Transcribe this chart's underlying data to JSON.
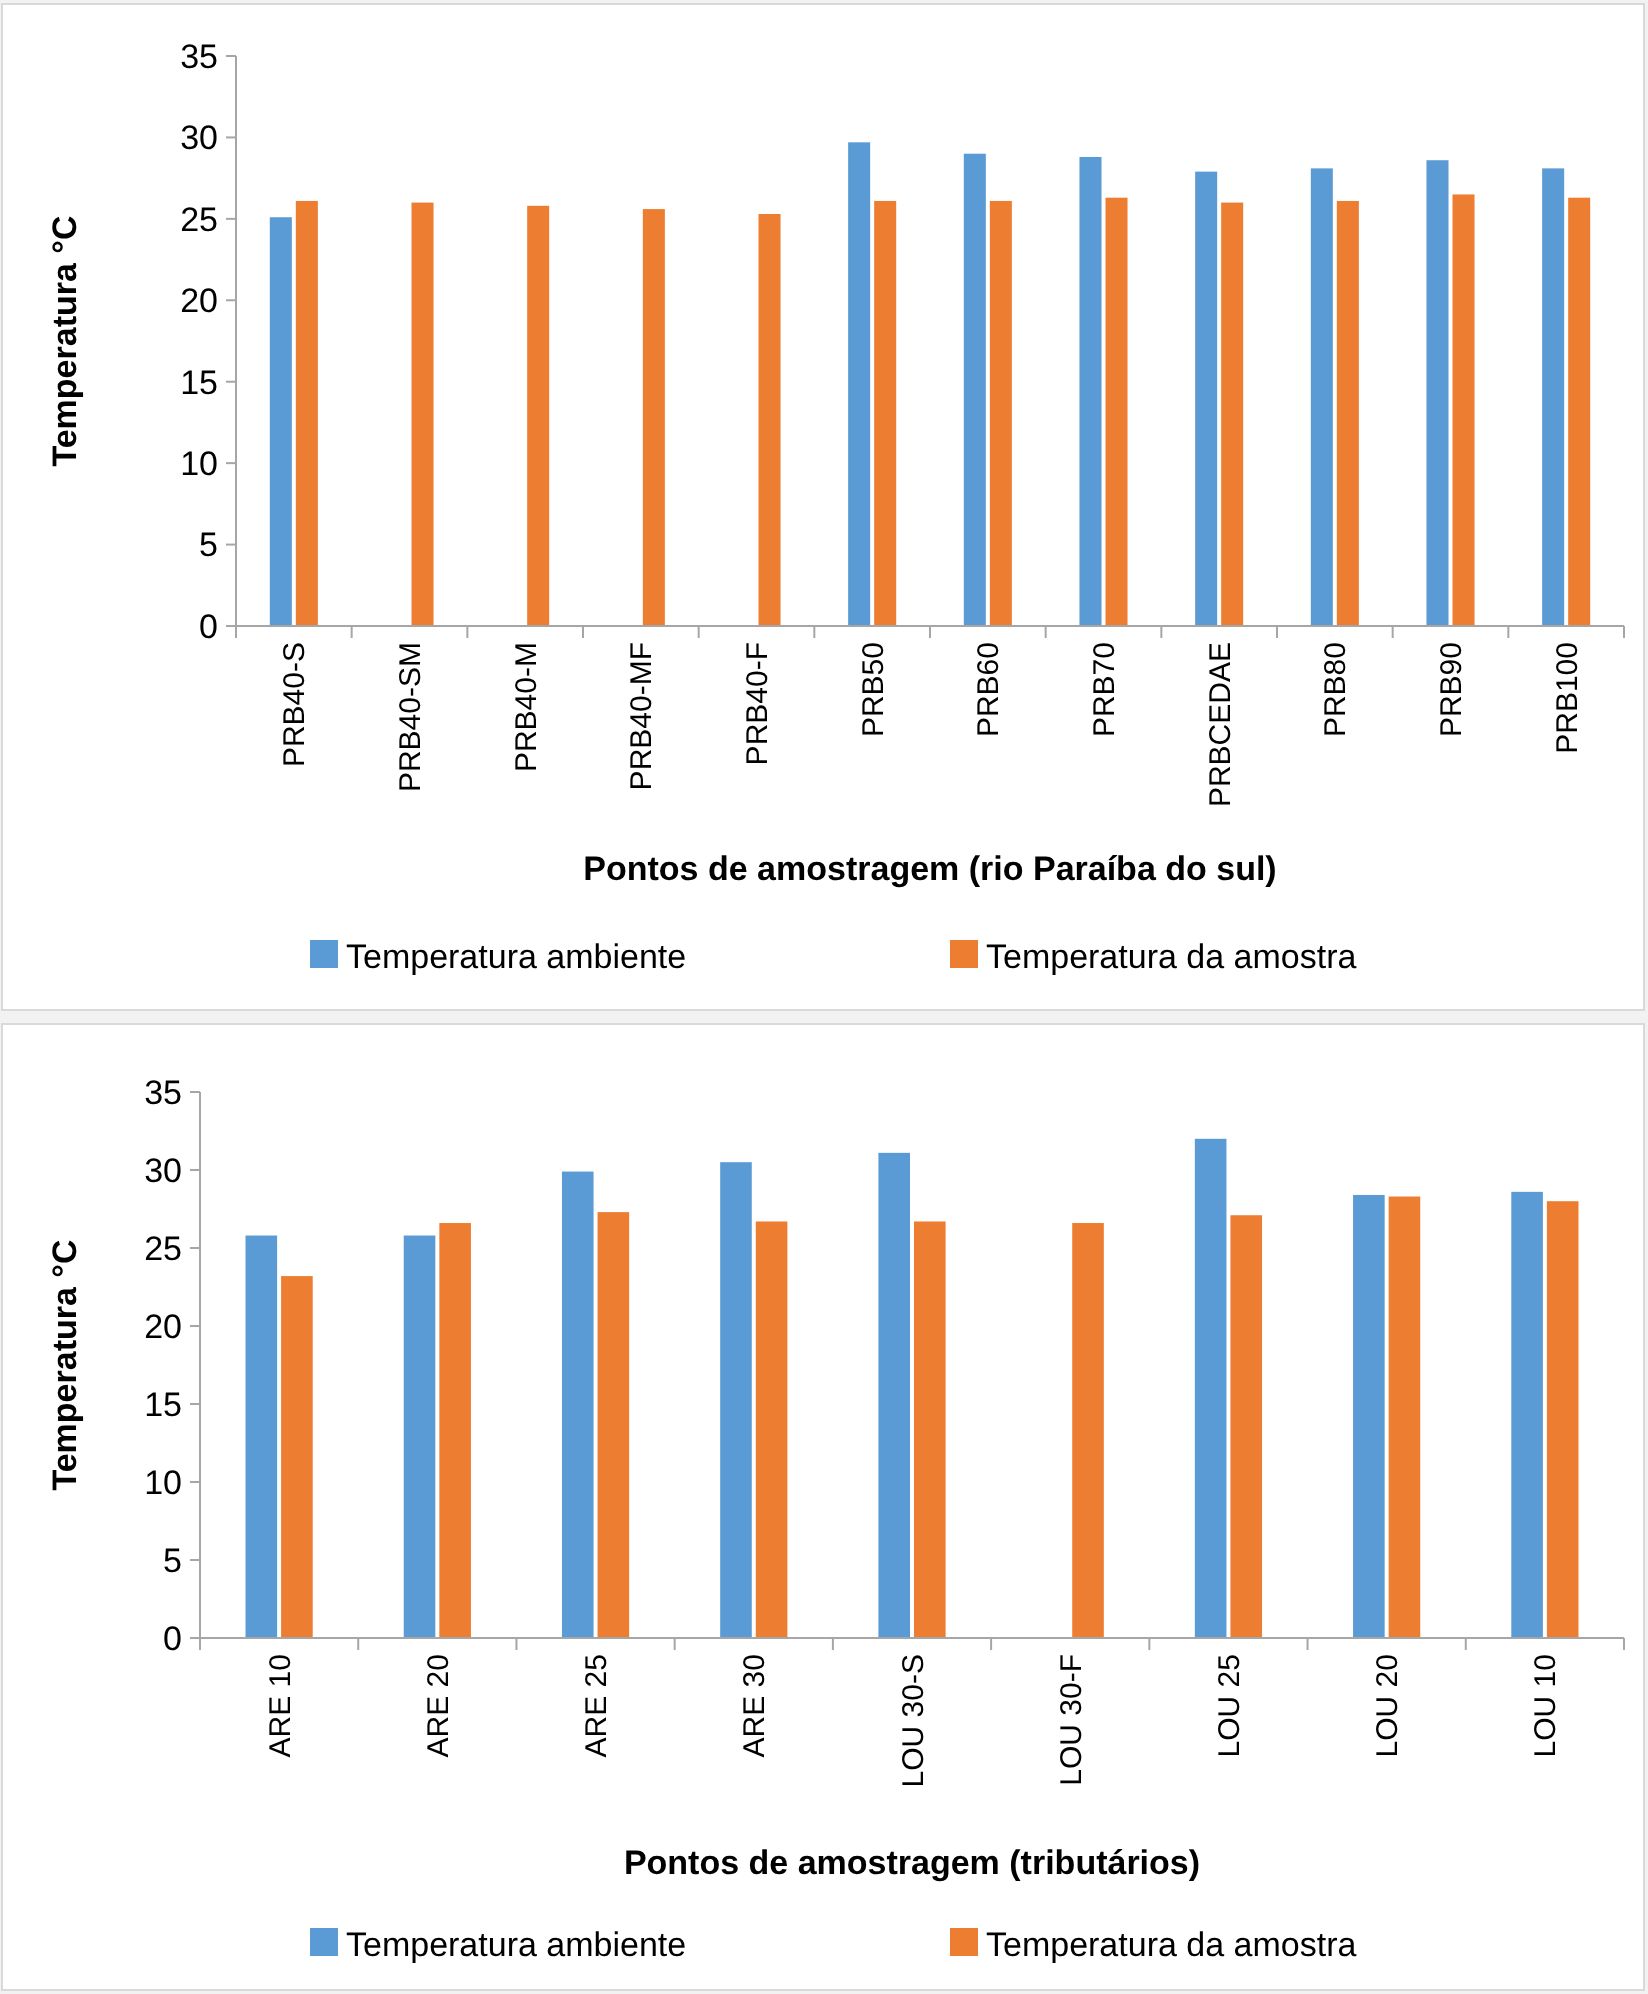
{
  "chart_data": [
    {
      "type": "bar",
      "ylabel": "Temperatura °C",
      "xlabel": "Pontos de amostragem (rio Paraíba do sul)",
      "categories": [
        "PRB40-S",
        "PRB40-SM",
        "PRB40-M",
        "PRB40-MF",
        "PRB40-F",
        "PRB50",
        "PRB60",
        "PRB70",
        "PRBCEDAE",
        "PRB80",
        "PRB90",
        "PRB100"
      ],
      "series": [
        {
          "name": "Temperatura ambiente",
          "color": "#5b9bd5",
          "values": [
            25.1,
            null,
            null,
            null,
            null,
            29.7,
            29.0,
            28.8,
            27.9,
            28.1,
            28.6,
            28.1
          ]
        },
        {
          "name": "Temperatura da amostra",
          "color": "#ed7d31",
          "values": [
            26.1,
            26.0,
            25.8,
            25.6,
            25.3,
            26.1,
            26.1,
            26.3,
            26.0,
            26.1,
            26.5,
            26.3
          ]
        }
      ],
      "ylim": [
        0,
        35
      ],
      "yticks": [
        0,
        5,
        10,
        15,
        20,
        25,
        30,
        35
      ],
      "grid": false,
      "legend": "bottom"
    },
    {
      "type": "bar",
      "ylabel": "Temperatura °C",
      "xlabel": "Pontos de amostragem (tributários)",
      "categories": [
        "ARE 10",
        "ARE 20",
        "ARE 25",
        "ARE 30",
        "LOU 30-S",
        "LOU 30-F",
        "LOU 25",
        "LOU 20",
        "LOU 10"
      ],
      "series": [
        {
          "name": "Temperatura ambiente",
          "color": "#5b9bd5",
          "values": [
            25.8,
            25.8,
            29.9,
            30.5,
            31.1,
            null,
            32.0,
            28.4,
            28.6
          ]
        },
        {
          "name": "Temperatura da amostra",
          "color": "#ed7d31",
          "values": [
            23.2,
            26.6,
            27.3,
            26.7,
            26.7,
            26.6,
            27.1,
            28.3,
            28.0
          ]
        }
      ],
      "ylim": [
        0,
        35
      ],
      "yticks": [
        0,
        5,
        10,
        15,
        20,
        25,
        30,
        35
      ],
      "grid": false,
      "legend": "bottom"
    }
  ]
}
